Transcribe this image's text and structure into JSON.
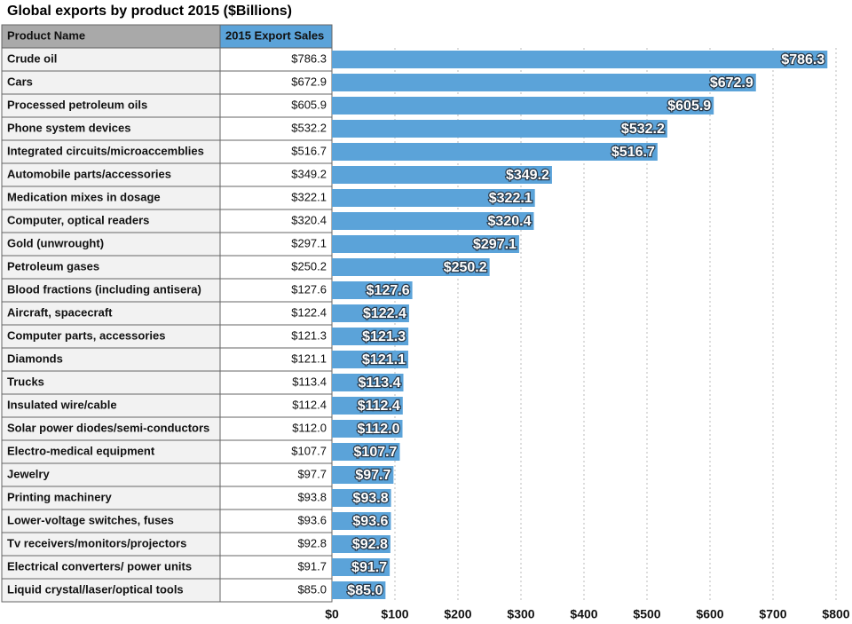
{
  "table": {
    "headers": [
      "Product Name",
      "2015 Export Sales"
    ]
  },
  "chart_data": {
    "type": "bar",
    "orientation": "horizontal",
    "title": "Global exports by product 2015 ($Billions)",
    "categories": [
      "Crude oil",
      "Cars",
      "Processed petroleum oils",
      "Phone system devices",
      "Integrated circuits/microaccemblies",
      "Automobile parts/accessories",
      "Medication mixes in dosage",
      "Computer, optical readers",
      "Gold (unwrought)",
      "Petroleum gases",
      "Blood fractions (including antisera)",
      "Aircraft, spacecraft",
      "Computer parts, accessories",
      "Diamonds",
      "Trucks",
      "Insulated wire/cable",
      "Solar power diodes/semi-conductors",
      "Electro-medical equipment",
      "Jewelry",
      "Printing machinery",
      "Lower-voltage switches, fuses",
      "Tv receivers/monitors/projectors",
      "Electrical converters/ power units",
      "Liquid crystal/laser/optical tools"
    ],
    "values": [
      786.3,
      672.9,
      605.9,
      532.2,
      516.7,
      349.2,
      322.1,
      320.4,
      297.1,
      250.2,
      127.6,
      122.4,
      121.3,
      121.1,
      113.4,
      112.4,
      112.0,
      107.7,
      97.7,
      93.8,
      93.6,
      92.8,
      91.7,
      85.0
    ],
    "value_labels": [
      "$786.3",
      "$672.9",
      "$605.9",
      "$532.2",
      "$516.7",
      "$349.2",
      "$322.1",
      "$320.4",
      "$297.1",
      "$250.2",
      "$127.6",
      "$122.4",
      "$121.3",
      "$121.1",
      "$113.4",
      "$112.4",
      "$112.0",
      "$107.7",
      "$97.7",
      "$93.8",
      "$93.6",
      "$92.8",
      "$91.7",
      "$85.0"
    ],
    "color": "#5ba3d9",
    "xlim": [
      0,
      800
    ],
    "xticks": [
      {
        "value": 0,
        "label": "$0"
      },
      {
        "value": 100,
        "label": "$100"
      },
      {
        "value": 200,
        "label": "$200"
      },
      {
        "value": 300,
        "label": "$300"
      },
      {
        "value": 400,
        "label": "$400"
      },
      {
        "value": 500,
        "label": "$500"
      },
      {
        "value": 600,
        "label": "$600"
      },
      {
        "value": 700,
        "label": "$700"
      },
      {
        "value": 800,
        "label": "$800"
      }
    ],
    "grid": true
  }
}
